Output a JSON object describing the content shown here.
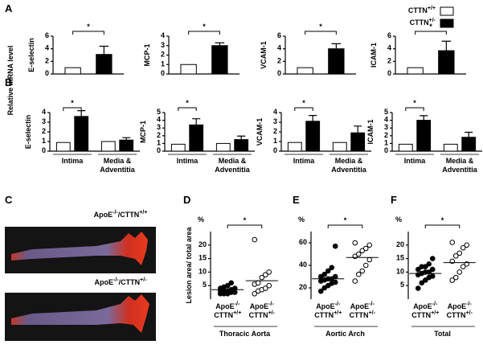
{
  "panel_labels": [
    "A",
    "B",
    "C",
    "D",
    "E",
    "F"
  ],
  "ylabel_shared": "Relative mRNA level",
  "panel_c": {
    "labels": [
      "ApoE-/-/CTTN+/+",
      "ApoE-/-/CTTN+/-"
    ]
  },
  "chart_data": [
    {
      "type": "bar",
      "ylabel": "E-selectin",
      "ylim": [
        0,
        6
      ],
      "yticks": [
        0,
        2,
        4,
        6
      ],
      "annotation": "*",
      "series": [
        {
          "name": "CTTN+/+",
          "color": "#ffffff",
          "values": [
            1
          ]
        },
        {
          "name": "CTTN+/-",
          "color": "#000000",
          "values": [
            3.1
          ],
          "errors": [
            1.3
          ]
        }
      ]
    },
    {
      "type": "bar",
      "ylabel": "MCP-1",
      "ylim": [
        0,
        4
      ],
      "yticks": [
        0,
        1,
        2,
        3,
        4
      ],
      "annotation": "*",
      "series": [
        {
          "color": "#ffffff",
          "values": [
            1
          ]
        },
        {
          "color": "#000000",
          "values": [
            3.0
          ],
          "errors": [
            0.3
          ]
        }
      ]
    },
    {
      "type": "bar",
      "ylabel": "VCAM-1",
      "ylim": [
        0,
        6
      ],
      "yticks": [
        0,
        2,
        4,
        6
      ],
      "annotation": "*",
      "series": [
        {
          "color": "#ffffff",
          "values": [
            1
          ]
        },
        {
          "color": "#000000",
          "values": [
            4.0
          ],
          "errors": [
            0.8
          ]
        }
      ]
    },
    {
      "type": "bar",
      "ylabel": "ICAM-1",
      "ylim": [
        0,
        6
      ],
      "yticks": [
        0,
        2,
        4,
        6
      ],
      "annotation": "*",
      "series": [
        {
          "color": "#ffffff",
          "values": [
            1
          ]
        },
        {
          "color": "#000000",
          "values": [
            3.7
          ],
          "errors": [
            1.5
          ]
        }
      ]
    },
    {
      "type": "bar",
      "ylabel": "E-selectin",
      "ylim": [
        0,
        4
      ],
      "yticks": [
        0,
        1,
        2,
        3,
        4
      ],
      "annotation": "*",
      "categories": [
        "Intima",
        "Media &\nAdventitia"
      ],
      "series": [
        {
          "color": "#ffffff",
          "values": [
            0.9,
            1.0
          ]
        },
        {
          "color": "#000000",
          "values": [
            3.6,
            1.15
          ],
          "errors": [
            0.6,
            0.25
          ]
        }
      ]
    },
    {
      "type": "bar",
      "ylabel": "MCP-1",
      "ylim": [
        0,
        5
      ],
      "yticks": [
        0,
        1,
        2,
        3,
        4,
        5
      ],
      "annotation": "*",
      "categories": [
        "Intima",
        "Media &\nAdventitia"
      ],
      "series": [
        {
          "color": "#ffffff",
          "values": [
            0.9,
            1.0
          ]
        },
        {
          "color": "#000000",
          "values": [
            3.4,
            1.5
          ],
          "errors": [
            0.8,
            0.45
          ]
        }
      ]
    },
    {
      "type": "bar",
      "ylabel": "VCAM-1",
      "ylim": [
        0,
        4
      ],
      "yticks": [
        0,
        1,
        2,
        3,
        4
      ],
      "annotation": "*",
      "categories": [
        "Intima",
        "Media &\nAdventitia"
      ],
      "series": [
        {
          "color": "#ffffff",
          "values": [
            0.9,
            0.9
          ]
        },
        {
          "color": "#000000",
          "values": [
            3.1,
            1.9
          ],
          "errors": [
            0.6,
            0.7
          ]
        }
      ]
    },
    {
      "type": "bar",
      "ylabel": "ICAM-1",
      "ylim": [
        0,
        5
      ],
      "yticks": [
        0,
        1,
        2,
        3,
        4,
        5
      ],
      "annotation": "*",
      "categories": [
        "Intima",
        "Media &\nAdventitia"
      ],
      "series": [
        {
          "color": "#ffffff",
          "values": [
            0.9,
            0.9
          ]
        },
        {
          "color": "#000000",
          "values": [
            4.0,
            1.8
          ],
          "errors": [
            0.6,
            0.65
          ]
        }
      ]
    },
    {
      "type": "strip",
      "ylabel": "Lesion area/ total area",
      "y_unit": "%",
      "xlabel": "Thoracic Aorta",
      "annotation": "*",
      "categories": [
        "ApoE-/-\nCTTN+/+",
        "ApoE-/-\nCTTN+/-"
      ],
      "ylim": [
        0,
        25
      ],
      "yticks": [
        5,
        10,
        15,
        20
      ],
      "series": [
        {
          "color": "#000000",
          "fill": "#000000",
          "values": [
            2,
            2,
            2,
            2.5,
            2.5,
            3,
            3,
            3,
            3.5,
            4,
            4,
            4.5,
            5,
            6
          ],
          "mean": 3.5
        },
        {
          "color": "#000000",
          "fill": "#ffffff",
          "values": [
            2,
            3,
            3.5,
            4,
            5,
            5.5,
            6,
            8,
            9,
            10,
            22
          ],
          "mean": 6.8
        }
      ]
    },
    {
      "type": "strip",
      "y_unit": "%",
      "xlabel": "Aortic Arch",
      "annotation": "*",
      "categories": [
        "ApoE-/-\nCTTN+/+",
        "ApoE-/-\nCTTN+/-"
      ],
      "ylim": [
        10,
        70
      ],
      "yticks": [
        20,
        40,
        60
      ],
      "series": [
        {
          "color": "#000000",
          "fill": "#000000",
          "values": [
            17,
            20,
            22,
            24,
            25,
            26,
            27,
            28,
            28,
            30,
            30,
            32,
            35,
            38,
            57
          ],
          "mean": 28
        },
        {
          "color": "#000000",
          "fill": "#ffffff",
          "values": [
            26,
            32,
            35,
            40,
            45,
            48,
            50,
            53,
            55,
            58,
            60
          ],
          "mean": 47
        }
      ]
    },
    {
      "type": "strip",
      "y_unit": "%",
      "xlabel": "Total",
      "annotation": "*",
      "categories": [
        "ApoE-/-\nCTTN+/+",
        "ApoE-/-\nCTTN+/-"
      ],
      "ylim": [
        0,
        25
      ],
      "yticks": [
        5,
        10,
        15,
        20
      ],
      "series": [
        {
          "color": "#000000",
          "fill": "#000000",
          "values": [
            4,
            6,
            7,
            8,
            8.5,
            9,
            9.5,
            10,
            10,
            11,
            11,
            12,
            12,
            13,
            15
          ],
          "mean": 9.5
        },
        {
          "color": "#000000",
          "fill": "#ffffff",
          "values": [
            7,
            8,
            10,
            12,
            13,
            14,
            16,
            17,
            19,
            20,
            21
          ],
          "mean": 13.5
        }
      ]
    }
  ]
}
